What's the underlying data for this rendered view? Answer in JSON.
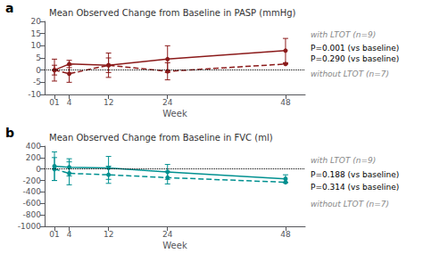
{
  "chart_data": [
    {
      "type": "line",
      "panel_label": "a",
      "title": "Mean Observed Change from Baseline in PASP (mmHg)",
      "xlabel": "Week",
      "x": [
        1,
        4,
        12,
        24,
        48
      ],
      "xlim": [
        -1,
        52
      ],
      "xticks": [
        {
          "value": 1,
          "label": "01"
        },
        4,
        12,
        24,
        48
      ],
      "ylim": [
        -10,
        20
      ],
      "yticks": [
        -10,
        -5,
        0,
        5,
        10,
        15,
        20
      ],
      "grid": false,
      "hline": 0,
      "series": [
        {
          "name": "with LTOT (n=9)",
          "color": "#8B1A1A",
          "line_style": "solid",
          "marker": "circle",
          "values": [
            0,
            2.5,
            2.0,
            4.5,
            8.0
          ],
          "err_lo": [
            4.5,
            1.5,
            5.0,
            5.5,
            5.0
          ],
          "err_hi": [
            4.5,
            1.5,
            5.0,
            5.5,
            5.0
          ]
        },
        {
          "name": "without LTOT (n=7)",
          "color": "#8B1A1A",
          "line_style": "dashed",
          "marker": "circle",
          "values": [
            0,
            -1.5,
            2.0,
            -0.5,
            2.5
          ],
          "err_lo": [
            2.0,
            3.5,
            3.0,
            3.5,
            0
          ],
          "err_hi": [
            2.0,
            3.5,
            3.0,
            3.5,
            0
          ]
        }
      ],
      "annotations": [
        "P=0.001 (vs baseline)",
        "P=0.290 (vs baseline)"
      ]
    },
    {
      "type": "line",
      "panel_label": "b",
      "title": "Mean Observed Change from Baseline in FVC (ml)",
      "xlabel": "Week",
      "x": [
        1,
        4,
        12,
        24,
        48
      ],
      "xlim": [
        -1,
        52
      ],
      "xticks": [
        {
          "value": 1,
          "label": "01"
        },
        4,
        12,
        24,
        48
      ],
      "ylim": [
        -1000,
        400
      ],
      "yticks": [
        -1000,
        -800,
        -600,
        -400,
        -200,
        0,
        200,
        400
      ],
      "grid": false,
      "hline": 0,
      "series": [
        {
          "name": "with LTOT (n=9)",
          "color": "#009090",
          "line_style": "solid",
          "marker": "circle",
          "values": [
            50,
            30,
            20,
            -50,
            -170
          ],
          "err_lo": [
            250,
            150,
            200,
            130,
            70
          ],
          "err_hi": [
            250,
            150,
            200,
            130,
            70
          ]
        },
        {
          "name": "without LTOT (n=7)",
          "color": "#009090",
          "line_style": "dashed",
          "marker": "circle",
          "values": [
            0,
            -75,
            -100,
            -150,
            -230
          ],
          "err_lo": [
            200,
            200,
            150,
            110,
            0
          ],
          "err_hi": [
            200,
            200,
            150,
            110,
            0
          ]
        }
      ],
      "annotations": [
        "P=0.188 (vs baseline)",
        "P=0.314 (vs baseline)"
      ]
    }
  ]
}
